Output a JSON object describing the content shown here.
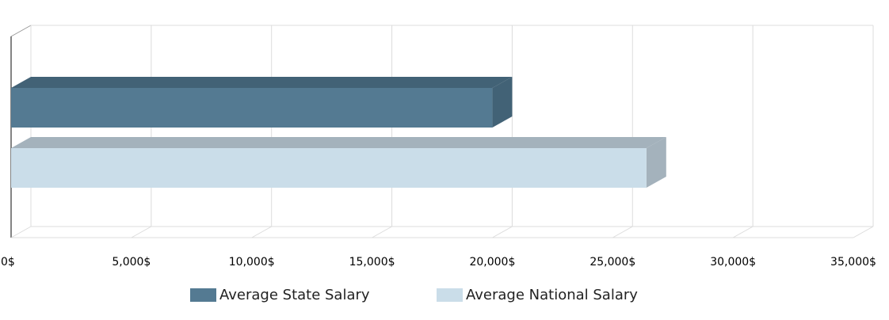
{
  "chart_data": {
    "type": "bar",
    "orientation": "horizontal",
    "style": "3d",
    "series": [
      {
        "name": "Average State Salary",
        "value": 20000,
        "color": "#547a92",
        "top_color": "#426276",
        "side_color": "#426276"
      },
      {
        "name": "Average National Salary",
        "value": 26400,
        "color": "#cadde9",
        "top_color": "#a4b2bc",
        "side_color": "#a4b2bc"
      }
    ],
    "xlim": [
      0,
      35000
    ],
    "x_ticks": [
      0,
      5000,
      10000,
      15000,
      20000,
      25000,
      30000,
      35000
    ],
    "x_tick_labels": [
      "0$",
      "5,000$",
      "10,000$",
      "15,000$",
      "20,000$",
      "25,000$",
      "30,000$",
      "35,000$"
    ],
    "grid": true,
    "legend_position": "bottom"
  }
}
